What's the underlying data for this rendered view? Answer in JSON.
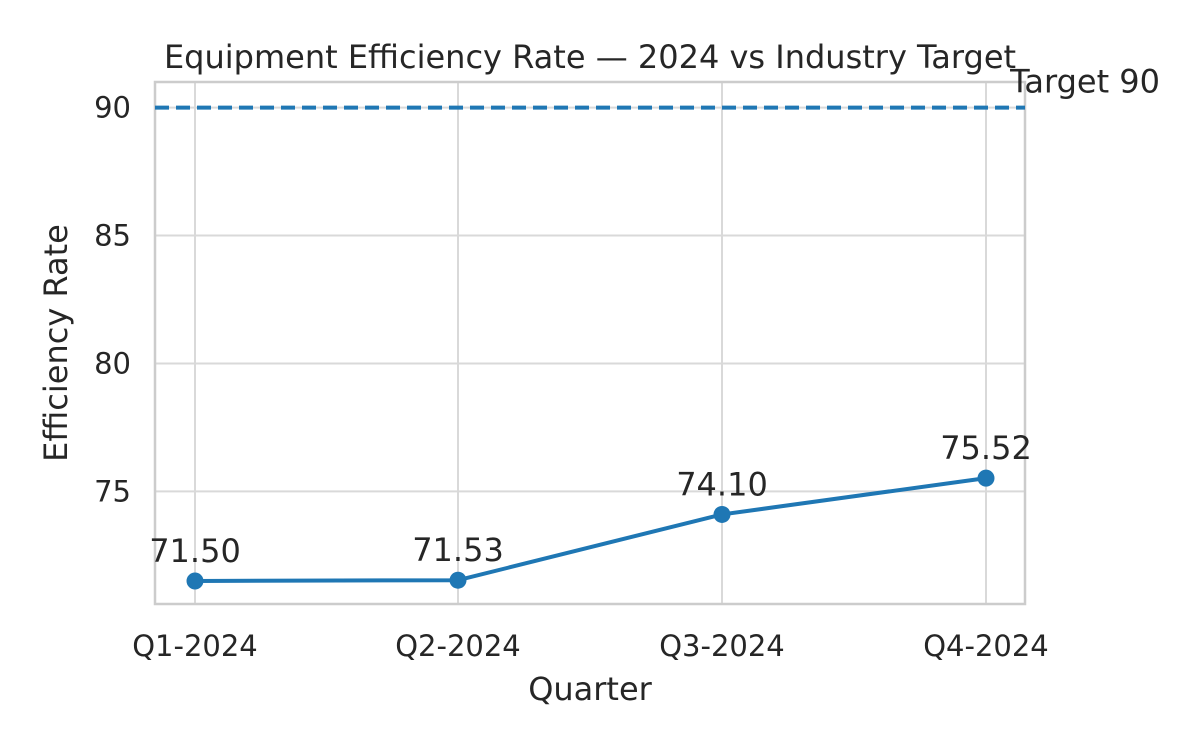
{
  "chart_data": {
    "type": "line",
    "title": "Equipment Efficiency Rate — 2024 vs Industry Target",
    "xlabel": "Quarter",
    "ylabel": "Efficiency Rate",
    "categories": [
      "Q1-2024",
      "Q2-2024",
      "Q3-2024",
      "Q4-2024"
    ],
    "values": [
      71.5,
      71.53,
      74.1,
      75.52
    ],
    "data_labels": [
      "71.50",
      "71.53",
      "74.10",
      "75.52"
    ],
    "ylim": [
      70.6,
      91.0
    ],
    "yticks": [
      75,
      80,
      85,
      90
    ],
    "grid": true,
    "target": {
      "value": 90,
      "label": "Target 90",
      "style": "dashed"
    },
    "colors": {
      "series": "#1f77b4",
      "target": "#1f77b4",
      "grid": "#d9d9d9",
      "axis": "#cccccc",
      "text": "#262626"
    }
  }
}
